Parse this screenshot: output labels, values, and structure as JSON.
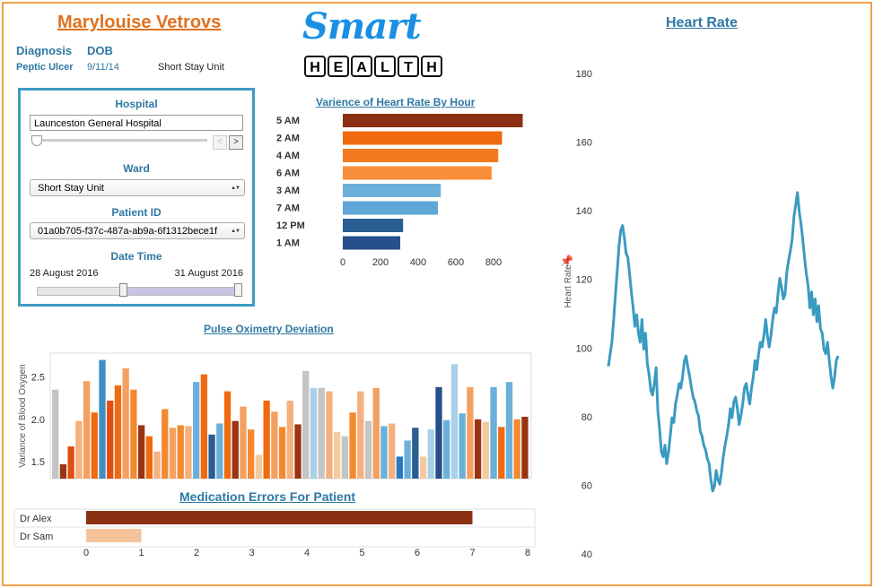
{
  "patient": {
    "name": "Marylouise Vetrovs",
    "diagnosis_label": "Diagnosis",
    "dob_label": "DOB",
    "diagnosis": "Peptic Ulcer",
    "dob": "9/11/14",
    "unit": "Short Stay Unit"
  },
  "logo": {
    "script_text": "Smart",
    "letters": [
      "H",
      "E",
      "A",
      "L",
      "T",
      "H"
    ]
  },
  "filters": {
    "hospital_label": "Hospital",
    "hospital_value": "Launceston General Hospital",
    "ward_label": "Ward",
    "ward_value": "Short Stay Unit",
    "patient_id_label": "Patient ID",
    "patient_id_value": "01a0b705-f37c-487a-ab9a-6f1312bece1f",
    "datetime_label": "Date Time",
    "date_start": "28 August 2016",
    "date_end": "31 August 2016",
    "prev_icon": "<",
    "next_icon": ">",
    "select_arrow": "▲▼"
  },
  "colors": {
    "accent": "#2e78a4",
    "frame": "#f4a04a",
    "title_orange": "#e0711f",
    "line": "#3a9bc0"
  },
  "chart_data": [
    {
      "id": "variance",
      "type": "bar",
      "orientation": "horizontal",
      "title": "Varience of Heart Rate By Hour",
      "categories": [
        "5 AM",
        "2 AM",
        "4 AM",
        "6 AM",
        "3 AM",
        "7 AM",
        "12 PM",
        "1 AM"
      ],
      "values": [
        955,
        845,
        825,
        790,
        520,
        505,
        320,
        305
      ],
      "colors": [
        "#8b3012",
        "#f06a0f",
        "#f47a1f",
        "#f88d3a",
        "#6bb0da",
        "#5ea7d6",
        "#2a5d92",
        "#27508a"
      ],
      "xticks": [
        0,
        200,
        400,
        600,
        800
      ],
      "xlim": [
        0,
        1000
      ]
    },
    {
      "id": "pulse",
      "type": "bar",
      "title": "Pulse Oximetry Deviation",
      "ylabel": "Variance of Blood Oxygen",
      "ylim": [
        1.3,
        2.78
      ],
      "yticks": [
        1.5,
        2.0,
        2.5
      ],
      "values": [
        2.35,
        1.47,
        1.68,
        1.98,
        2.45,
        2.08,
        2.7,
        2.22,
        2.4,
        2.6,
        2.35,
        1.93,
        1.8,
        1.62,
        2.12,
        1.9,
        1.93,
        1.92,
        2.44,
        2.53,
        1.82,
        1.95,
        2.33,
        1.98,
        2.15,
        1.88,
        1.58,
        2.22,
        2.09,
        1.91,
        2.22,
        1.94,
        2.57,
        2.37,
        2.37,
        2.33,
        1.85,
        1.8,
        2.08,
        2.33,
        1.98,
        2.37,
        1.92,
        1.95,
        1.56,
        1.75,
        1.9,
        1.56,
        1.88,
        2.38,
        1.99,
        2.65,
        2.07,
        2.38,
        2.0,
        1.97,
        2.38,
        1.91,
        2.44,
        2.0,
        2.03
      ],
      "colors": [
        "#c4c4c4",
        "#9a3412",
        "#e04e14",
        "#f4b07d",
        "#f4a060",
        "#f06a10",
        "#3f8ec4",
        "#e04e14",
        "#f06a10",
        "#f4a060",
        "#f48a30",
        "#9a3412",
        "#f06a10",
        "#f4b07d",
        "#f48a30",
        "#f4a060",
        "#f48a30",
        "#f4b07d",
        "#6bb0da",
        "#f06a10",
        "#2a5d92",
        "#6bb0da",
        "#f06a10",
        "#9a3412",
        "#f4a060",
        "#f48a30",
        "#f4c9a0",
        "#f06a10",
        "#f4a060",
        "#f48a30",
        "#f4b07d",
        "#9a3412",
        "#c4c4c4",
        "#a8d0e8",
        "#c4c4c4",
        "#f4b07d",
        "#f4c9a0",
        "#c4c4c4",
        "#f48a30",
        "#f4b07d",
        "#c4c4c4",
        "#f4a060",
        "#6bb0da",
        "#f4b07d",
        "#2a79bc",
        "#6bb0da",
        "#2a5d92",
        "#f4c9a0",
        "#a8d0e8",
        "#27508a",
        "#6bb0da",
        "#a8d0e8",
        "#6bb0da",
        "#f4a060",
        "#9a3412",
        "#f4c9a0",
        "#6bb0da",
        "#f06a10",
        "#6bb0da",
        "#f48a30",
        "#9a3412"
      ]
    },
    {
      "id": "medication",
      "type": "bar",
      "orientation": "horizontal",
      "title": "Medication Errors For Patient",
      "categories": [
        "Dr Alex",
        "Dr Sam"
      ],
      "values": [
        7,
        1
      ],
      "colors": [
        "#8b3012",
        "#f5c39a"
      ],
      "xticks": [
        0,
        1,
        2,
        3,
        4,
        5,
        6,
        7,
        8
      ],
      "xlim": [
        0,
        8
      ]
    },
    {
      "id": "heartrate",
      "type": "line",
      "title": "Heart Rate",
      "ylabel": "Heart Rate",
      "ylim": [
        40,
        180
      ],
      "yticks": [
        40,
        60,
        80,
        100,
        120,
        140,
        160,
        180
      ],
      "values": [
        95,
        98,
        102,
        108,
        116,
        122,
        130,
        134,
        136,
        132,
        128,
        126,
        122,
        116,
        112,
        106,
        110,
        104,
        102,
        108,
        100,
        104,
        96,
        92,
        88,
        86,
        90,
        94,
        82,
        76,
        70,
        68,
        72,
        66,
        70,
        74,
        80,
        78,
        84,
        86,
        90,
        88,
        92,
        96,
        98,
        94,
        92,
        88,
        86,
        84,
        82,
        80,
        76,
        74,
        72,
        70,
        68,
        66,
        62,
        58,
        60,
        64,
        62,
        60,
        64,
        68,
        72,
        74,
        78,
        82,
        80,
        84,
        86,
        82,
        78,
        80,
        84,
        88,
        90,
        86,
        84,
        88,
        92,
        96,
        94,
        98,
        102,
        100,
        104,
        108,
        104,
        100,
        104,
        108,
        112,
        110,
        116,
        120,
        118,
        114,
        116,
        122,
        126,
        128,
        132,
        138,
        142,
        145,
        140,
        136,
        132,
        126,
        122,
        118,
        112,
        116,
        110,
        114,
        108,
        112,
        106,
        104,
        100,
        98,
        102,
        96,
        92,
        88,
        92,
        96,
        98
      ]
    }
  ]
}
